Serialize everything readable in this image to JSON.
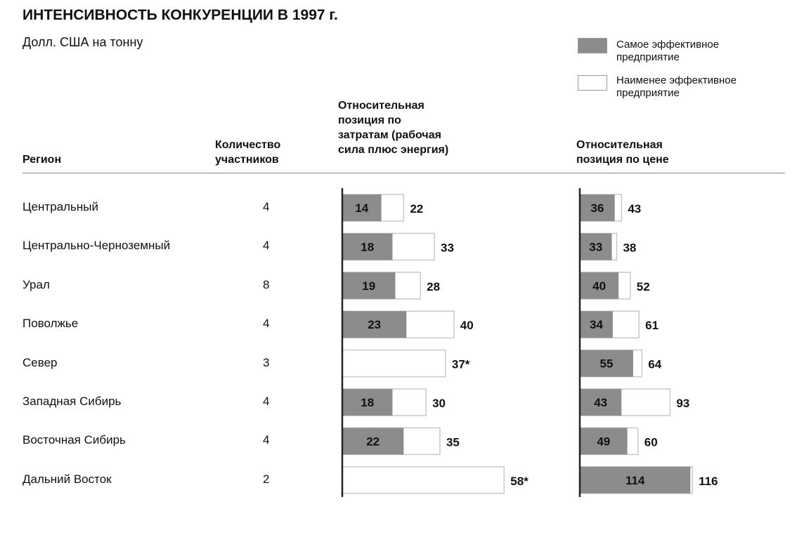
{
  "title": "ИНТЕНСИВНОСТЬ КОНКУРЕНЦИИ В 1997 г.",
  "subtitle": "Долл. США на тонну",
  "legend": [
    {
      "label_lines": [
        "Самое эффективное",
        "предприятие"
      ],
      "color": "#8c8c8c"
    },
    {
      "label_lines": [
        "Наименее эффективное",
        "предприятие"
      ],
      "color": "#ffffff"
    }
  ],
  "headers": {
    "region": "Регион",
    "count": [
      "Количество",
      "участников"
    ],
    "cost": [
      "Относительная",
      "позиция по",
      "затратам (рабочая",
      "сила плюс энергия)"
    ],
    "price": [
      "Относительная",
      "позиция по цене"
    ]
  },
  "chart_data": {
    "type": "bar",
    "orientation": "horizontal",
    "categories": [
      "Центральный",
      "Центрально-Черноземный",
      "Урал",
      "Поволжье",
      "Север",
      "Западная Сибирь",
      "Восточная Сибирь",
      "Дальний Восток"
    ],
    "participants": [
      "4",
      "4",
      "8",
      "4",
      "3",
      "4",
      "4",
      "2"
    ],
    "panels": [
      {
        "title": "Относительная позиция по затратам (рабочая сила плюс энергия)",
        "most_efficient": [
          14,
          18,
          19,
          23,
          null,
          18,
          22,
          null
        ],
        "least_efficient": [
          22,
          33,
          28,
          40,
          37,
          30,
          35,
          58
        ],
        "least_labels": [
          "22",
          "33",
          "28",
          "40",
          "37*",
          "30",
          "35",
          "58*"
        ]
      },
      {
        "title": "Относительная позиция по цене",
        "most_efficient": [
          36,
          33,
          40,
          34,
          55,
          43,
          49,
          114
        ],
        "least_efficient": [
          43,
          38,
          52,
          61,
          64,
          93,
          60,
          116
        ],
        "least_labels": [
          "43",
          "38",
          "52",
          "61",
          "64",
          "93",
          "60",
          "116"
        ]
      }
    ],
    "colors": {
      "most": "#8c8c8c",
      "least": "#ffffff"
    }
  }
}
